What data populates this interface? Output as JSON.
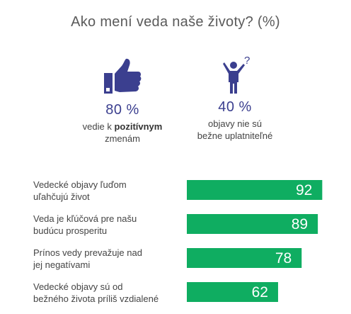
{
  "title": "Ako mení veda naše životy? (%)",
  "stats": {
    "left": {
      "icon": "thumbs-up-icon",
      "value": "80 %",
      "desc_pre": "vedie k ",
      "desc_bold": "pozitívnym",
      "desc_post": "zmenám"
    },
    "right": {
      "icon": "confused-person-icon",
      "value": "40 %",
      "desc_line1": "objavy nie sú",
      "desc_line2": "bežne uplatniteľné"
    }
  },
  "colors": {
    "bar": "#0fad61",
    "icon": "#3b3f8f",
    "text": "#444444"
  },
  "chart_data": {
    "type": "bar",
    "orientation": "horizontal",
    "categories": [
      [
        "Vedecké objavy ľuďom",
        "uľahčujú život"
      ],
      [
        "Veda je kľúčová pre našu",
        "budúcu prosperitu"
      ],
      [
        "Prínos vedy prevažuje nad",
        "jej negatívami"
      ],
      [
        "Vedecké objavy sú od",
        "bežného života príliš vzdialené"
      ]
    ],
    "values": [
      92,
      89,
      78,
      62
    ],
    "xlim": [
      0,
      100
    ],
    "grid": false,
    "data_labels": true
  }
}
